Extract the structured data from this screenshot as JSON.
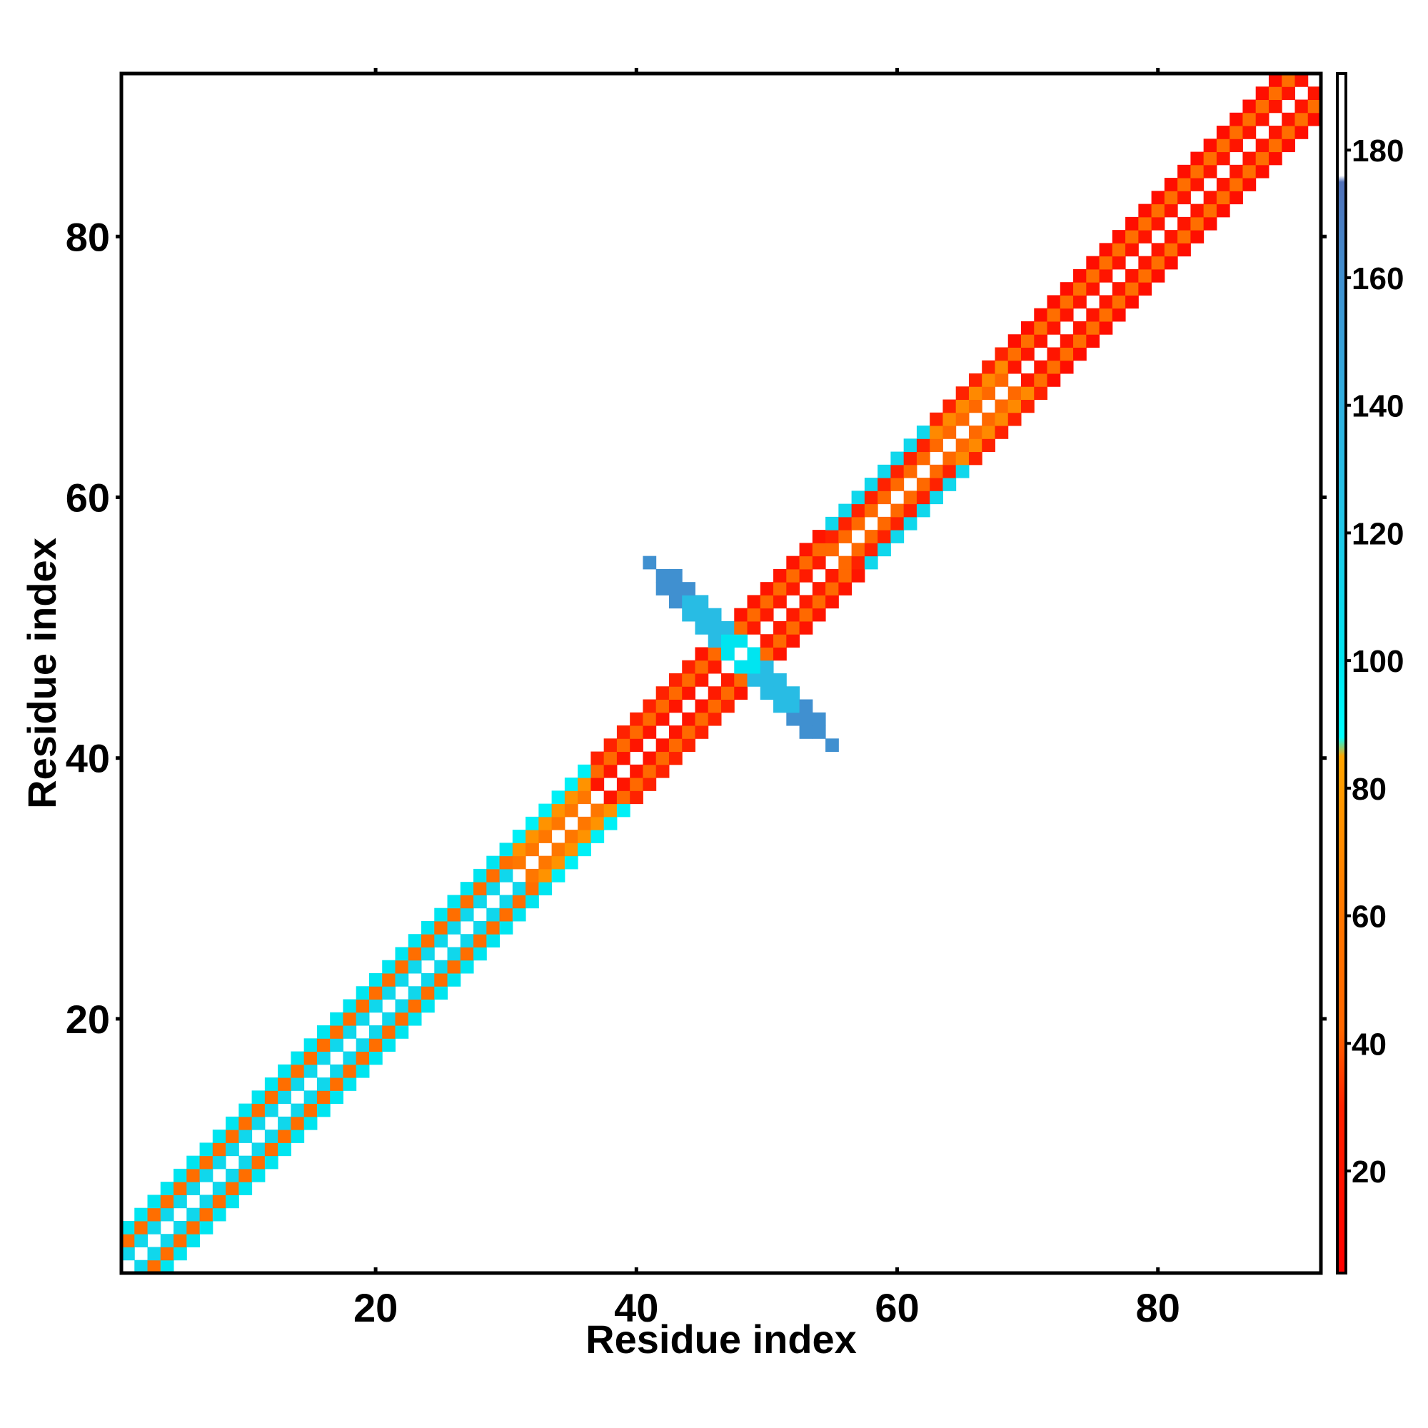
{
  "chart_data": {
    "type": "heatmap",
    "title": "",
    "xlabel": "Residue index",
    "ylabel": "Residue index",
    "xlim": [
      0.5,
      92.5
    ],
    "ylim": [
      0.5,
      92.5
    ],
    "x_ticks": [
      20,
      40,
      60,
      80
    ],
    "y_ticks": [
      20,
      40,
      60,
      80
    ],
    "grid": false,
    "colorbar": {
      "range": [
        4,
        192
      ],
      "ticks": [
        20,
        40,
        60,
        80,
        100,
        120,
        140,
        160,
        180
      ],
      "stops": [
        {
          "value": 4,
          "color": "#ff0000"
        },
        {
          "value": 30,
          "color": "#ff2200"
        },
        {
          "value": 42,
          "color": "#ff6600"
        },
        {
          "value": 60,
          "color": "#ff7700"
        },
        {
          "value": 85,
          "color": "#ffa500"
        },
        {
          "value": 88,
          "color": "#00ffff"
        },
        {
          "value": 100,
          "color": "#00e5f0"
        },
        {
          "value": 120,
          "color": "#20c8e8"
        },
        {
          "value": 140,
          "color": "#30b0e0"
        },
        {
          "value": 160,
          "color": "#4090d0"
        },
        {
          "value": 175,
          "color": "#5070b8"
        },
        {
          "value": 176,
          "color": "#ffffff"
        },
        {
          "value": 192,
          "color": "#ffffff"
        }
      ]
    },
    "bands": [
      {
        "from": 1,
        "to": 30,
        "values": {
          "1": 110,
          "2": 50,
          "3": 100
        }
      },
      {
        "from": 31,
        "to": 36,
        "values": {
          "1": 60,
          "2": 75,
          "3": 95
        }
      },
      {
        "from": 37,
        "to": 44,
        "values": {
          "1": 20,
          "2": 45,
          "3": 30
        }
      },
      {
        "from": 45,
        "to": 54,
        "values": {
          "1": 25,
          "2": 45,
          "3": 20
        }
      },
      {
        "from": 55,
        "to": 62,
        "values": {
          "1": 45,
          "2": 30,
          "3": 110
        }
      },
      {
        "from": 63,
        "to": 68,
        "values": {
          "1": 45,
          "2": 70,
          "3": 30
        }
      },
      {
        "from": 69,
        "to": 92,
        "values": {
          "1": 20,
          "2": 50,
          "3": 15
        }
      }
    ],
    "cross_region": {
      "center": [
        48,
        48
      ],
      "arm_length": 7,
      "values_near": 100,
      "values_mid": 130,
      "values_far": 160
    }
  }
}
